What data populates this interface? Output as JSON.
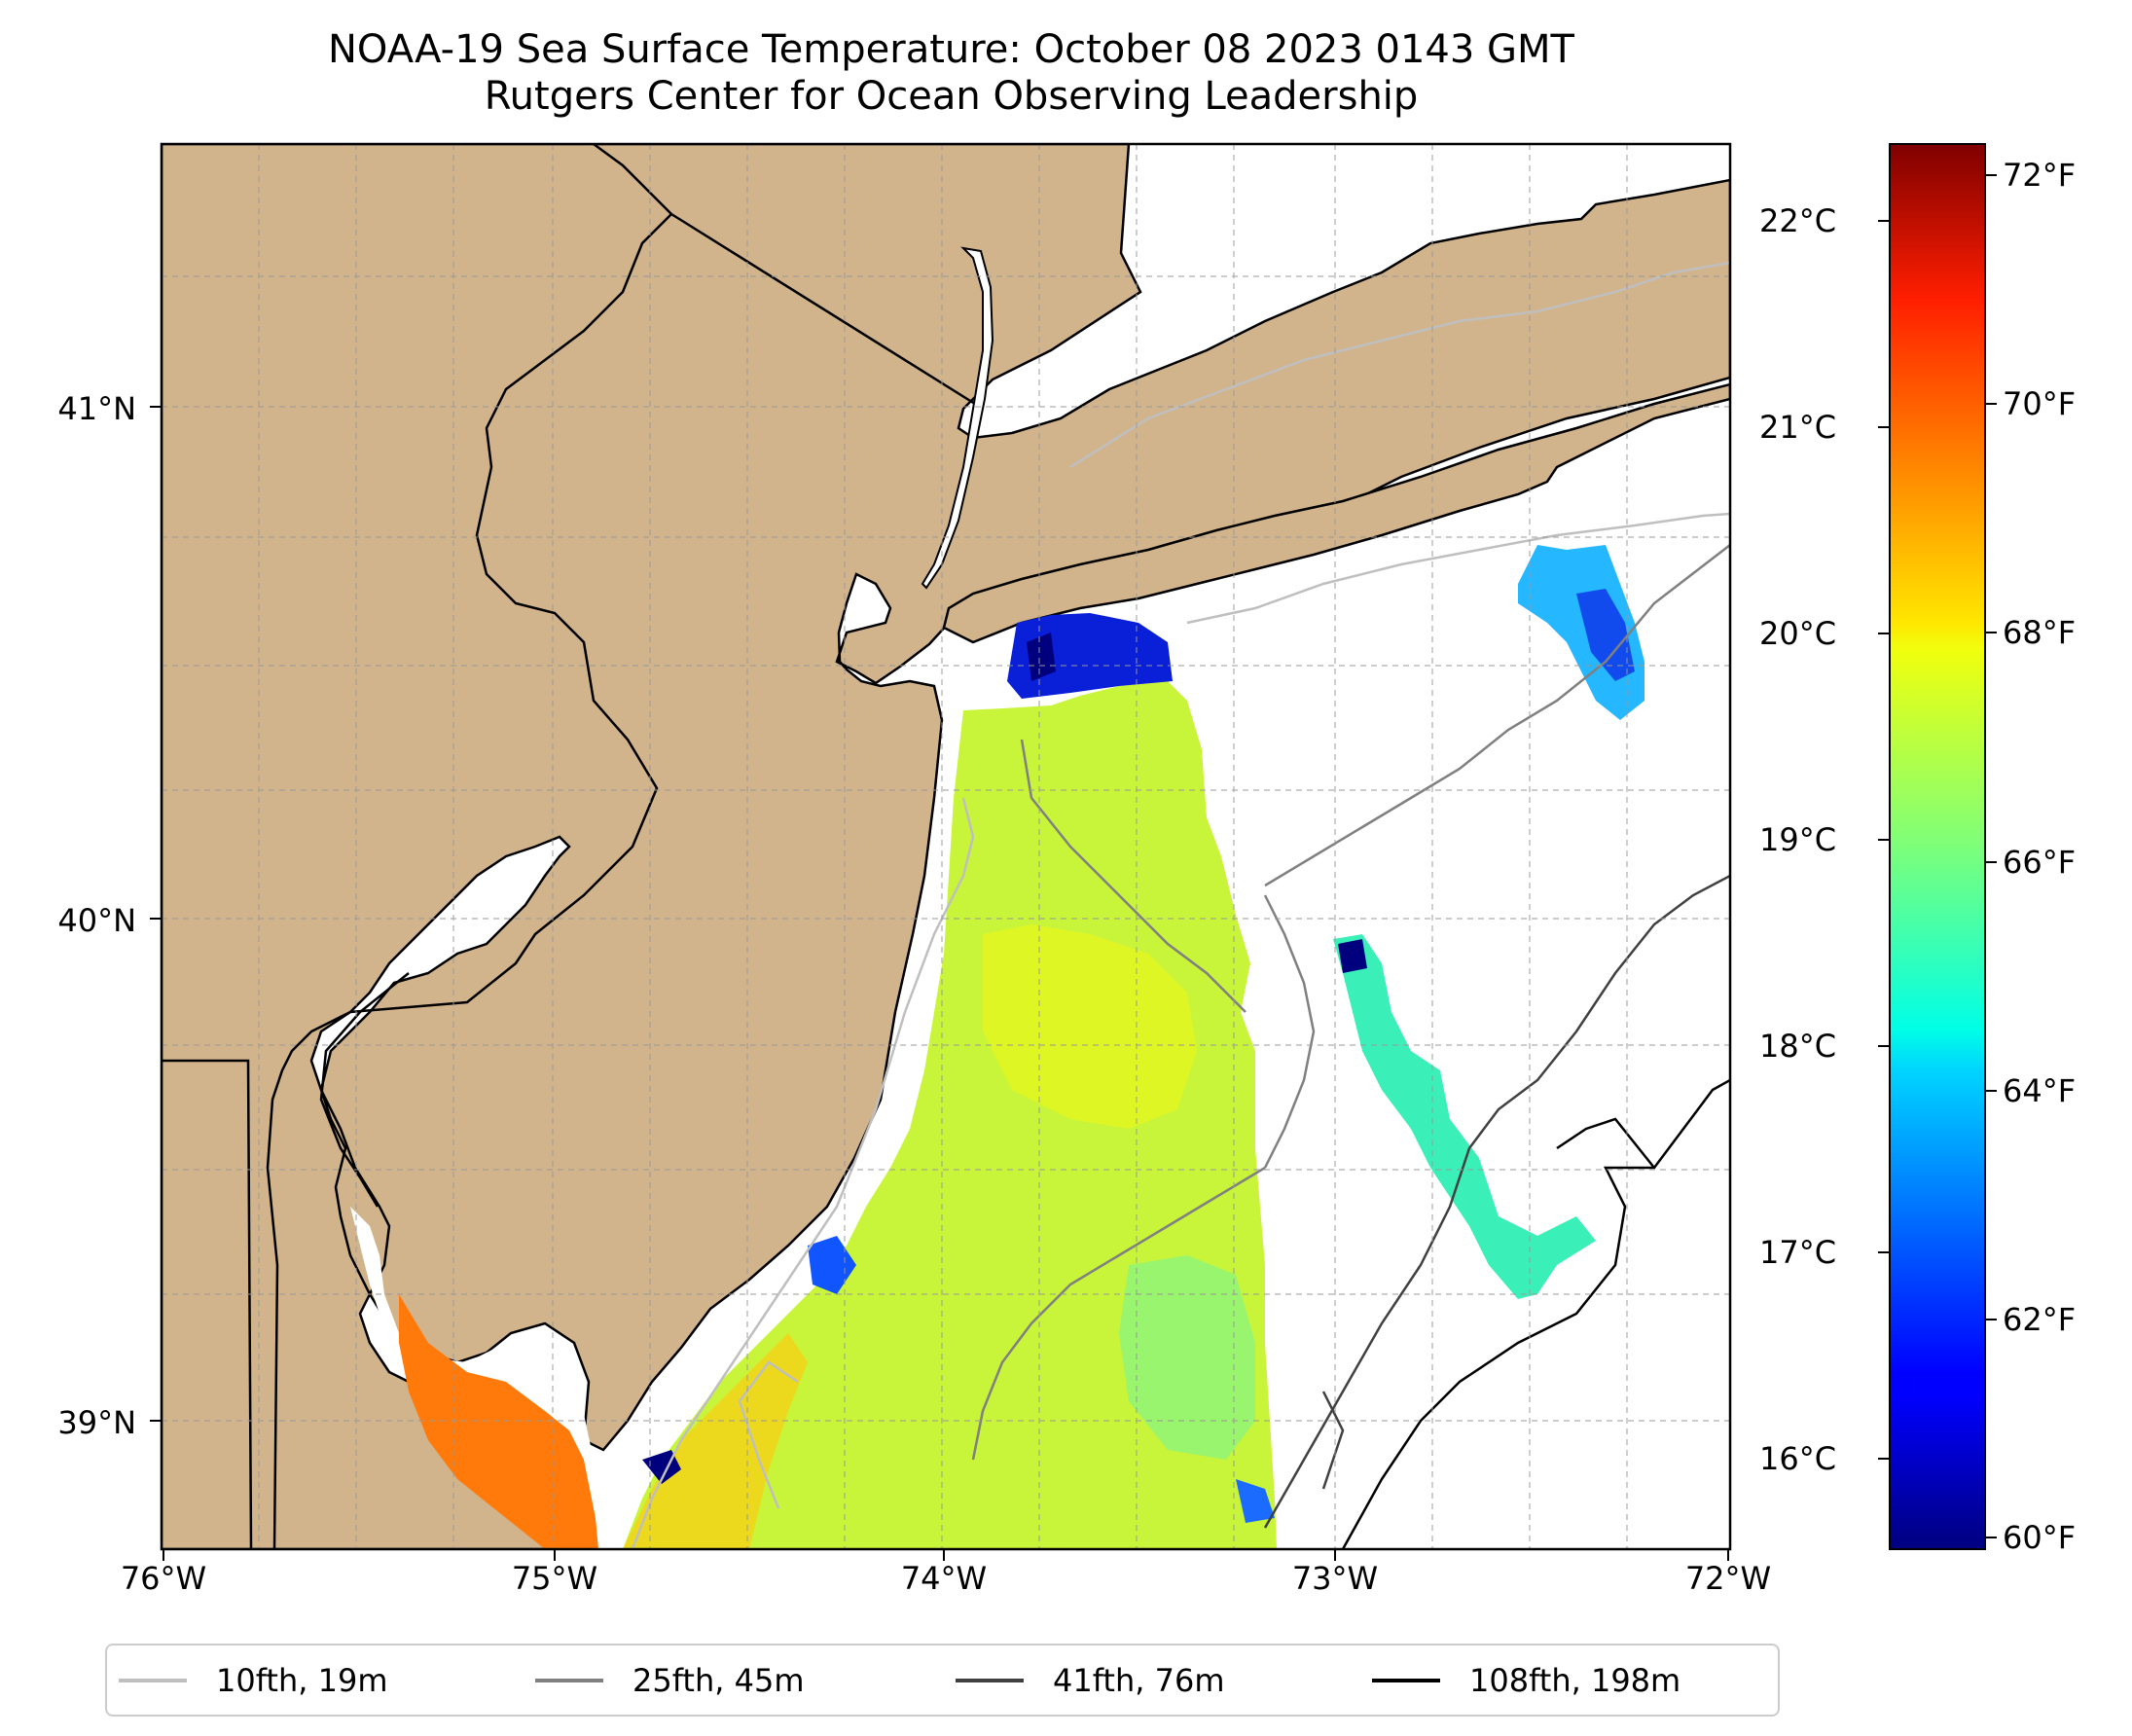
{
  "title": {
    "line1": "NOAA-19 Sea Surface Temperature: October 08 2023 0143 GMT",
    "line2": "Rutgers Center for Ocean Observing Leadership"
  },
  "map": {
    "lon_range": [
      -76,
      -72
    ],
    "lat_range": [
      38.7,
      41.5
    ],
    "x_ticks": [
      "76°W",
      "75°W",
      "74°W",
      "73°W",
      "72°W"
    ],
    "y_ticks": [
      "41°N",
      "40°N",
      "39°N"
    ],
    "land_color": "#d2b48c",
    "water_color": "#ffffff",
    "grid": true
  },
  "colorbar": {
    "colormap": "jet",
    "range_c": [
      15.5,
      22.3
    ],
    "celsius_labels": [
      "22°C",
      "21°C",
      "20°C",
      "19°C",
      "18°C",
      "17°C",
      "16°C"
    ],
    "fahrenheit_labels": [
      "72°F",
      "70°F",
      "68°F",
      "66°F",
      "64°F",
      "62°F",
      "60°F"
    ]
  },
  "legend": {
    "items": [
      {
        "label": "10fth, 19m",
        "color": "#bfbfbf"
      },
      {
        "label": "25fth, 45m",
        "color": "#808080"
      },
      {
        "label": "41fth, 76m",
        "color": "#404040"
      },
      {
        "label": "108fth, 198m",
        "color": "#000000"
      }
    ]
  }
}
